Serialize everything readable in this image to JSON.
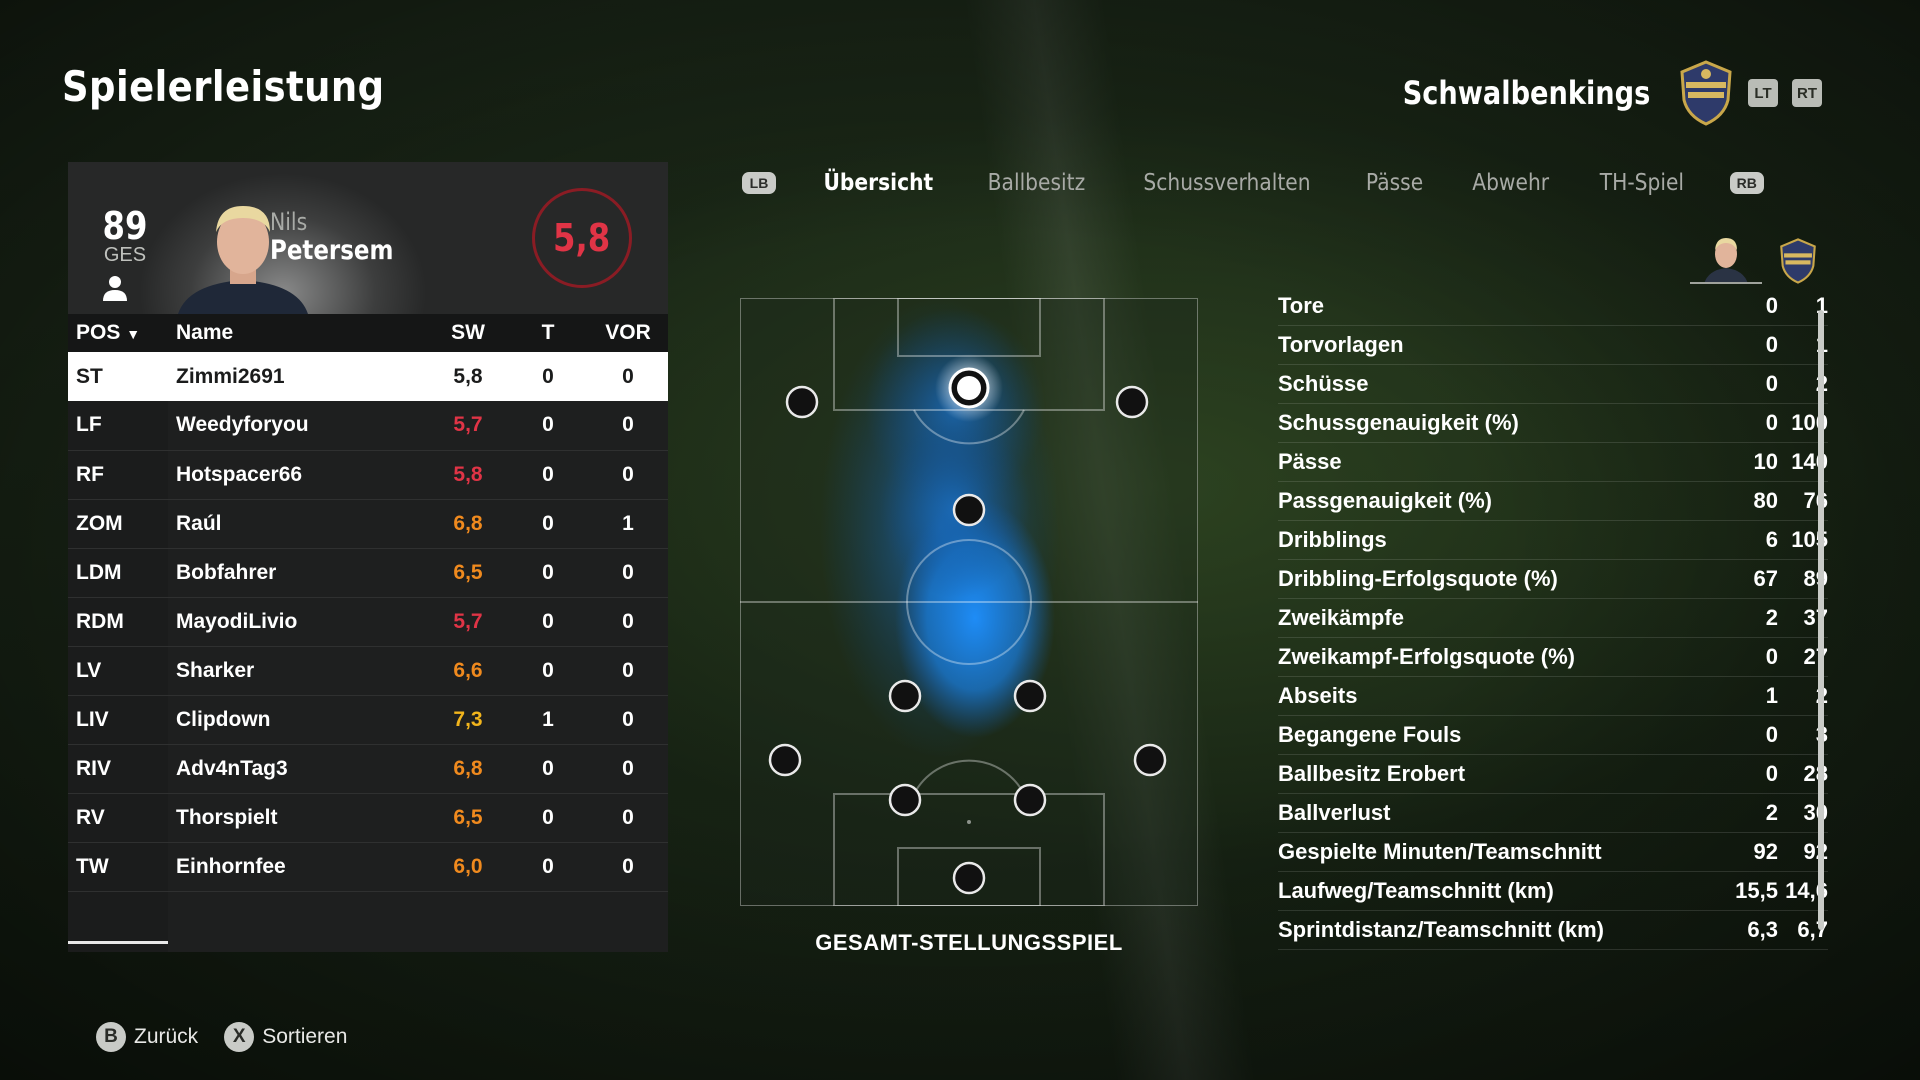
{
  "page": {
    "title": "Spielerleistung"
  },
  "team": {
    "name": "Schwalbenkings",
    "lt_label": "LT",
    "rt_label": "RT"
  },
  "player": {
    "overall": "89",
    "overall_label": "GES",
    "first_name": "Nils",
    "last_name": "Petersem",
    "rating": "5,8"
  },
  "table": {
    "headers": {
      "pos": "POS",
      "name": "Name",
      "sw": "SW",
      "t": "T",
      "vor": "VOR"
    },
    "rows": [
      {
        "pos": "ST",
        "name": "Zimmi2691",
        "sw": "5,8",
        "t": "0",
        "vor": "0",
        "tone": "red"
      },
      {
        "pos": "LF",
        "name": "Weedyforyou",
        "sw": "5,7",
        "t": "0",
        "vor": "0",
        "tone": "red"
      },
      {
        "pos": "RF",
        "name": "Hotspacer66",
        "sw": "5,8",
        "t": "0",
        "vor": "0",
        "tone": "red"
      },
      {
        "pos": "ZOM",
        "name": "Raúl",
        "sw": "6,8",
        "t": "0",
        "vor": "1",
        "tone": "orange"
      },
      {
        "pos": "LDM",
        "name": "Bobfahrer",
        "sw": "6,5",
        "t": "0",
        "vor": "0",
        "tone": "orange"
      },
      {
        "pos": "RDM",
        "name": "MayodiLivio",
        "sw": "5,7",
        "t": "0",
        "vor": "0",
        "tone": "red"
      },
      {
        "pos": "LV",
        "name": "Sharker",
        "sw": "6,6",
        "t": "0",
        "vor": "0",
        "tone": "orange"
      },
      {
        "pos": "LIV",
        "name": "Clipdown",
        "sw": "7,3",
        "t": "1",
        "vor": "0",
        "tone": "yellow"
      },
      {
        "pos": "RIV",
        "name": "Adv4nTag3",
        "sw": "6,8",
        "t": "0",
        "vor": "0",
        "tone": "orange"
      },
      {
        "pos": "RV",
        "name": "Thorspielt",
        "sw": "6,5",
        "t": "0",
        "vor": "0",
        "tone": "orange"
      },
      {
        "pos": "TW",
        "name": "Einhornfee",
        "sw": "6,0",
        "t": "0",
        "vor": "0",
        "tone": "orange"
      }
    ]
  },
  "tabs": {
    "lb_label": "LB",
    "rb_label": "RB",
    "items": [
      "Übersicht",
      "Ballbesitz",
      "Schussverhalten",
      "Pässe",
      "Abwehr",
      "TH-Spiel"
    ]
  },
  "pitch": {
    "label": "GESAMT-STELLUNGSSPIEL"
  },
  "stats": [
    {
      "label": "Tore",
      "player": "0",
      "team": "1"
    },
    {
      "label": "Torvorlagen",
      "player": "0",
      "team": "1"
    },
    {
      "label": "Schüsse",
      "player": "0",
      "team": "2"
    },
    {
      "label": "Schussgenauigkeit (%)",
      "player": "0",
      "team": "100"
    },
    {
      "label": "Pässe",
      "player": "10",
      "team": "140"
    },
    {
      "label": "Passgenauigkeit (%)",
      "player": "80",
      "team": "76"
    },
    {
      "label": "Dribblings",
      "player": "6",
      "team": "105"
    },
    {
      "label": "Dribbling-Erfolgsquote (%)",
      "player": "67",
      "team": "89"
    },
    {
      "label": "Zweikämpfe",
      "player": "2",
      "team": "37"
    },
    {
      "label": "Zweikampf-Erfolgsquote (%)",
      "player": "0",
      "team": "27"
    },
    {
      "label": "Abseits",
      "player": "1",
      "team": "2"
    },
    {
      "label": "Begangene Fouls",
      "player": "0",
      "team": "3"
    },
    {
      "label": "Ballbesitz Erobert",
      "player": "0",
      "team": "28"
    },
    {
      "label": "Ballverlust",
      "player": "2",
      "team": "30"
    },
    {
      "label": "Gespielte Minuten/Teamschnitt",
      "player": "92",
      "team": "92"
    },
    {
      "label": "Laufweg/Teamschnitt (km)",
      "player": "15,5",
      "team": "14,6"
    },
    {
      "label": "Sprintdistanz/Teamschnitt (km)",
      "player": "6,3",
      "team": "6,7"
    }
  ],
  "footer": {
    "back_key": "B",
    "back_label": "Zurück",
    "sort_key": "X",
    "sort_label": "Sortieren"
  },
  "colors": {
    "red": "#e03446",
    "orange": "#f08a1e",
    "yellow": "#f2b51c",
    "heat": "#1e90ff"
  }
}
